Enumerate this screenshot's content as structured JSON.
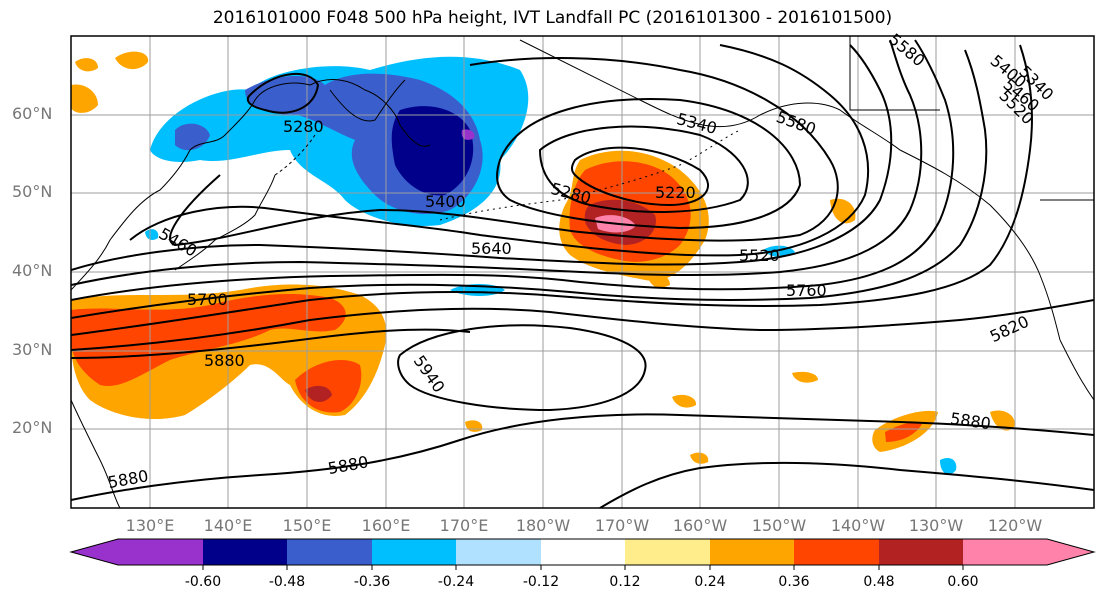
{
  "title": "2016101000 F048 500 hPa height, IVT Landfall PC (2016101300 - 2016101500)",
  "lat_ticks": [
    "60°N",
    "50°N",
    "40°N",
    "30°N",
    "20°N"
  ],
  "lon_ticks": [
    "130°E",
    "140°E",
    "150°E",
    "160°E",
    "170°E",
    "180°W",
    "170°W",
    "160°W",
    "150°W",
    "140°W",
    "130°W",
    "120°W"
  ],
  "colorbar": {
    "colors": [
      "#9932cc",
      "#00008b",
      "#3a5fcd",
      "#00bfff",
      "#b0e2ff",
      "#ffffff",
      "#ffec8b",
      "#ffa500",
      "#ff4500",
      "#b22222",
      "#ff82ab"
    ],
    "tick_labels": [
      "-0.60",
      "-0.48",
      "-0.36",
      "-0.24",
      "-0.12",
      "0.12",
      "0.24",
      "0.36",
      "0.48",
      "0.60"
    ]
  },
  "contour_labels": [
    "5280",
    "5220",
    "5340",
    "5400",
    "5460",
    "5520",
    "5580",
    "5640",
    "5700",
    "5760",
    "5820",
    "5880",
    "5880",
    "5880",
    "5880",
    "5940",
    "5280",
    "5340",
    "5400",
    "5460",
    "5520",
    "5580"
  ]
}
